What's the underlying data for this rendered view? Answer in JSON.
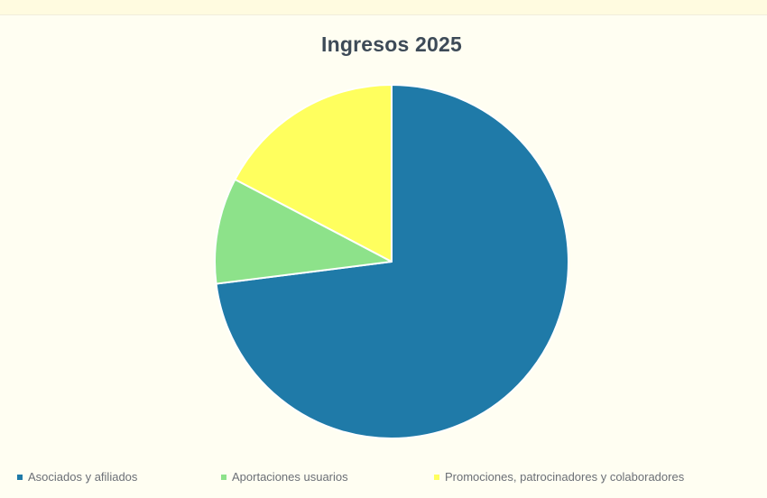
{
  "chart_data": {
    "type": "pie",
    "title": "Ingresos 2025",
    "slices": [
      {
        "label": "Asociados y afiliados",
        "value": 73.0,
        "color": "#1f7aa8"
      },
      {
        "label": "Aportaciones usuarios",
        "value": 9.7,
        "color": "#8de28a"
      },
      {
        "label": "Promociones, patrocinadores y colaboradores",
        "value": 17.3,
        "color": "#ffff5e"
      }
    ],
    "start": "12 o'clock",
    "direction": "clockwise",
    "legend_position": "bottom"
  }
}
